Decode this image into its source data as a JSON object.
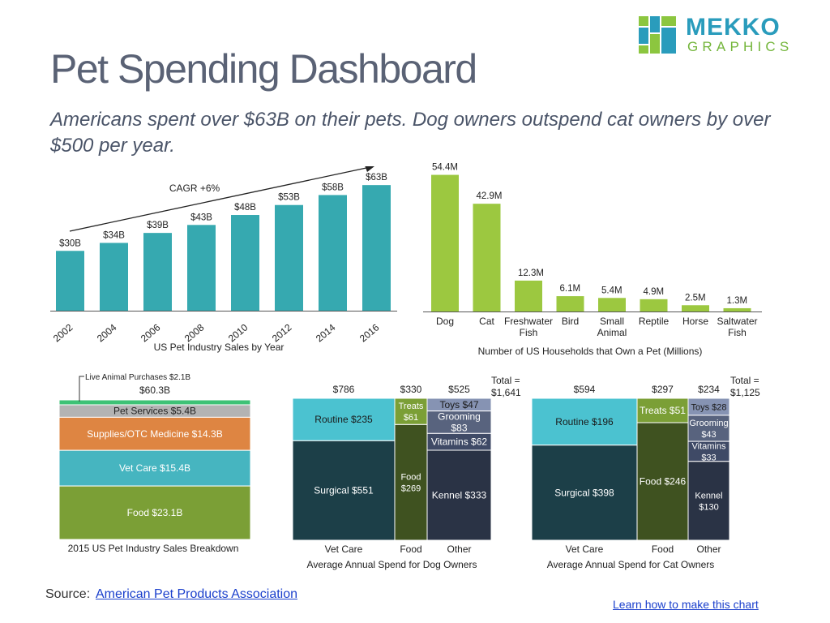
{
  "header": {
    "title": "Pet Spending Dashboard",
    "subtitle": "Americans spent over $63B on their pets. Dog owners outspend cat owners by over $500 per year."
  },
  "logo": {
    "word1": "MEKKO",
    "word2": "GRAPHICS"
  },
  "footer": {
    "source_label": "Source:",
    "source_link": "American Pet Products Association",
    "learn_link": "Learn how to make this chart"
  },
  "colors": {
    "teal": "#36a9b0",
    "lime": "#9cc840",
    "light_green": "#3ec276",
    "gray": "#b3b3b3",
    "orange": "#de8542",
    "vet": "#46b5c0",
    "food_olive": "#7b9f36",
    "surgical": "#1c3f48",
    "routine": "#4bc2d0",
    "food_dark": "#3f5220",
    "kennel": "#2a3345",
    "vitamins": "#3f4a66",
    "grooming": "#58637e",
    "toys": "#8693b3"
  },
  "chart_data": [
    {
      "type": "bar",
      "id": "industry-sales",
      "title": "US Pet Industry Sales by Year",
      "categories": [
        "2002",
        "2004",
        "2006",
        "2008",
        "2010",
        "2012",
        "2014",
        "2016"
      ],
      "values": [
        30,
        34,
        39,
        43,
        48,
        53,
        58,
        63
      ],
      "labels": [
        "$30B",
        "$34B",
        "$39B",
        "$43B",
        "$48B",
        "$53B",
        "$58B",
        "$63B"
      ],
      "annotation": "CAGR +6%",
      "ylim": [
        0,
        70
      ]
    },
    {
      "type": "bar",
      "id": "households",
      "title": "Number of US Households that Own a Pet (Millions)",
      "categories": [
        "Dog",
        "Cat",
        "Freshwater Fish",
        "Bird",
        "Small Animal",
        "Reptile",
        "Horse",
        "Saltwater Fish"
      ],
      "values": [
        54.4,
        42.9,
        12.3,
        6.1,
        5.4,
        4.9,
        2.5,
        1.3
      ],
      "labels": [
        "54.4M",
        "42.9M",
        "12.3M",
        "6.1M",
        "5.4M",
        "4.9M",
        "2.5M",
        "1.3M"
      ],
      "ylim": [
        0,
        56
      ]
    },
    {
      "type": "bar",
      "id": "breakdown",
      "title": "2015 US Pet Industry Sales Breakdown",
      "total_label": "$60.3B",
      "callout": "Live Animal Purchases $2.1B",
      "segments": [
        {
          "name": "Live Animal Purchases",
          "value": 2.1,
          "label": "",
          "color": "#3ec276"
        },
        {
          "name": "Pet Services",
          "value": 5.4,
          "label": "Pet Services $5.4B",
          "color": "#b3b3b3"
        },
        {
          "name": "Supplies/OTC Medicine",
          "value": 14.3,
          "label": "Supplies/OTC Medicine $14.3B",
          "color": "#de8542"
        },
        {
          "name": "Vet Care",
          "value": 15.4,
          "label": "Vet Care $15.4B",
          "color": "#46b5c0"
        },
        {
          "name": "Food",
          "value": 23.1,
          "label": "Food $23.1B",
          "color": "#7b9f36"
        }
      ]
    },
    {
      "type": "bar",
      "id": "dog-spend",
      "title": "Average Annual Spend for Dog Owners",
      "total_label": "Total = $1,641",
      "columns": [
        {
          "name": "Vet Care",
          "total": 786,
          "total_label": "$786",
          "segments": [
            {
              "value": 235,
              "label": "Routine $235",
              "color": "#4bc2d0"
            },
            {
              "value": 551,
              "label": "Surgical $551",
              "color": "#1c3f48"
            }
          ]
        },
        {
          "name": "Food",
          "total": 330,
          "total_label": "$330",
          "segments": [
            {
              "value": 61,
              "label": "Treats $61",
              "color": "#7b9f36"
            },
            {
              "value": 269,
              "label": "Food $269",
              "color": "#3f5220"
            }
          ]
        },
        {
          "name": "Other",
          "total": 525,
          "total_label": "$525",
          "segments": [
            {
              "value": 47,
              "label": "Toys $47",
              "color": "#8693b3"
            },
            {
              "value": 83,
              "label": "Grooming $83",
              "color": "#58637e"
            },
            {
              "value": 62,
              "label": "Vitamins $62",
              "color": "#3f4a66"
            },
            {
              "value": 333,
              "label": "Kennel $333",
              "color": "#2a3345"
            }
          ]
        }
      ]
    },
    {
      "type": "bar",
      "id": "cat-spend",
      "title": "Average Annual Spend for Cat Owners",
      "total_label": "Total = $1,125",
      "columns": [
        {
          "name": "Vet Care",
          "total": 594,
          "total_label": "$594",
          "segments": [
            {
              "value": 196,
              "label": "Routine $196",
              "color": "#4bc2d0"
            },
            {
              "value": 398,
              "label": "Surgical $398",
              "color": "#1c3f48"
            }
          ]
        },
        {
          "name": "Food",
          "total": 297,
          "total_label": "$297",
          "segments": [
            {
              "value": 51,
              "label": "Treats $51",
              "color": "#7b9f36"
            },
            {
              "value": 246,
              "label": "Food $246",
              "color": "#3f5220"
            }
          ]
        },
        {
          "name": "Other",
          "total": 234,
          "total_label": "$234",
          "segments": [
            {
              "value": 28,
              "label": "Toys $28",
              "color": "#8693b3"
            },
            {
              "value": 43,
              "label": "Grooming $43",
              "color": "#58637e"
            },
            {
              "value": 33,
              "label": "Vitamins $33",
              "color": "#3f4a66"
            },
            {
              "value": 130,
              "label": "Kennel $130",
              "color": "#2a3345"
            }
          ]
        }
      ]
    }
  ]
}
